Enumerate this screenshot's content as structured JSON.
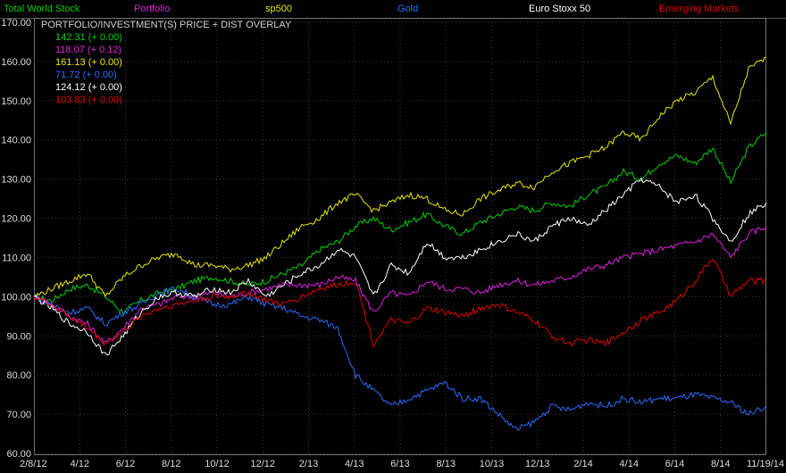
{
  "chart_data": {
    "type": "line",
    "title": "PORTFOLIO/INVESTMENT(S) PRICE + DIST OVERLAY",
    "ylim": [
      60,
      170
    ],
    "y_ticks": [
      "170.00",
      "160.00",
      "150.00",
      "140.00",
      "130.00",
      "120.00",
      "110.00",
      "100.00",
      "90.00",
      "80.00",
      "70.00",
      "60.00"
    ],
    "x_ticks": [
      "2/8/12",
      "4/12",
      "6/12",
      "8/12",
      "10/12",
      "12/12",
      "2/13",
      "4/13",
      "6/13",
      "8/13",
      "10/13",
      "12/13",
      "2/14",
      "4/14",
      "6/14",
      "8/14",
      "11/19/14"
    ],
    "grid": true,
    "series": [
      {
        "name": "Total World Stock",
        "color": "#00d000",
        "readout": "142.31 (+ 0.00)",
        "values": [
          100,
          99,
          102,
          103,
          100,
          96,
          99,
          101,
          102,
          104,
          105,
          104,
          103,
          104,
          106,
          108,
          112,
          114,
          118,
          120,
          117,
          119,
          121,
          118,
          116,
          119,
          121,
          123,
          122,
          124,
          123,
          126,
          128,
          132,
          130,
          134,
          136,
          134,
          138,
          129,
          138,
          142
        ]
      },
      {
        "name": "Portfolio",
        "color": "#e020e0",
        "readout": "118.07 (+ 0.12)",
        "values": [
          100,
          98,
          95,
          93,
          88,
          92,
          97,
          98,
          100,
          100,
          101,
          100,
          101,
          102,
          103,
          103,
          103,
          105,
          104,
          96,
          101,
          100,
          104,
          102,
          102,
          101,
          103,
          104,
          103,
          104,
          105,
          107,
          108,
          110,
          111,
          112,
          113,
          114,
          116,
          110,
          116,
          118
        ]
      },
      {
        "name": "sp500",
        "color": "#e8e800",
        "readout": "161.13 (+ 0.00)",
        "values": [
          100,
          102,
          104,
          106,
          100,
          105,
          108,
          110,
          111,
          108,
          108,
          107,
          108,
          110,
          114,
          118,
          120,
          124,
          126,
          122,
          124,
          126,
          125,
          122,
          121,
          125,
          127,
          129,
          128,
          132,
          134,
          136,
          138,
          142,
          140,
          146,
          150,
          152,
          156,
          144,
          158,
          161
        ]
      },
      {
        "name": "Gold",
        "color": "#2a6cff",
        "readout": "71.72 (+ 0.00)",
        "values": [
          100,
          98,
          96,
          97,
          93,
          96,
          98,
          101,
          102,
          100,
          98,
          98,
          100,
          98,
          97,
          95,
          94,
          92,
          80,
          76,
          72,
          74,
          76,
          78,
          74,
          74,
          70,
          66,
          68,
          72,
          71,
          73,
          72,
          74,
          73,
          74,
          74,
          75,
          74,
          73,
          70,
          72
        ]
      },
      {
        "name": "Euro Stoxx 50",
        "color": "#ffffff",
        "readout": "124.12 (+ 0.00)",
        "values": [
          100,
          97,
          93,
          91,
          85,
          90,
          96,
          100,
          101,
          100,
          102,
          101,
          104,
          100,
          103,
          106,
          108,
          112,
          110,
          100,
          108,
          106,
          114,
          110,
          110,
          112,
          114,
          116,
          114,
          118,
          120,
          118,
          122,
          126,
          130,
          128,
          124,
          126,
          120,
          114,
          121,
          124
        ]
      },
      {
        "name": "Emerging Markets",
        "color": "#e00000",
        "readout": "103.83 (+ 0.00)",
        "values": [
          100,
          98,
          95,
          92,
          88,
          91,
          95,
          97,
          98,
          99,
          100,
          100,
          101,
          99,
          98,
          100,
          102,
          103,
          104,
          88,
          94,
          93,
          97,
          96,
          95,
          97,
          98,
          96,
          94,
          90,
          88,
          89,
          88,
          91,
          94,
          96,
          99,
          104,
          110,
          100,
          104,
          104
        ]
      }
    ]
  }
}
